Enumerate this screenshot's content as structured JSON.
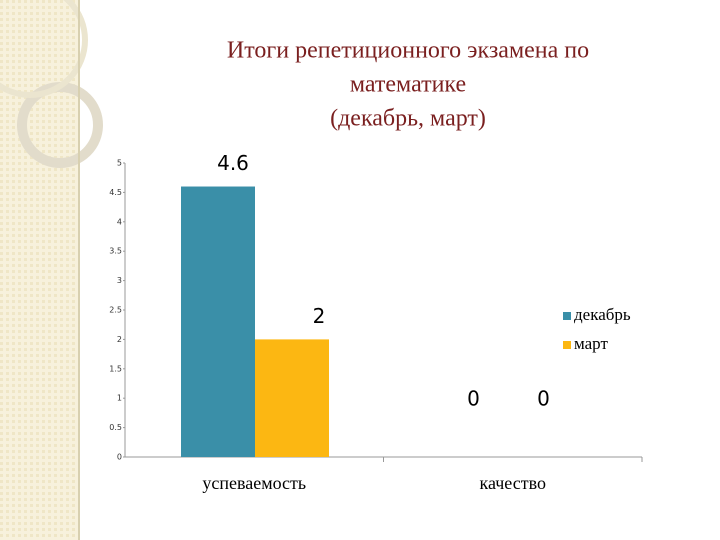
{
  "chart_data": {
    "type": "bar",
    "title": [
      "Итоги репетиционного экзамена по",
      "математике",
      "(декабрь,  март)"
    ],
    "categories": [
      "успеваемость",
      "качество"
    ],
    "series": [
      {
        "name": "декабрь",
        "color": "#3a8fa8",
        "values": [
          4.6,
          0
        ]
      },
      {
        "name": "март",
        "color": "#fcb712",
        "values": [
          2,
          0
        ]
      }
    ],
    "ylim": [
      0,
      5
    ],
    "yticks": [
      0,
      0.5,
      1,
      1.5,
      2,
      2.5,
      3,
      3.5,
      4,
      4.5,
      5
    ],
    "legend": "right",
    "grid": false
  }
}
